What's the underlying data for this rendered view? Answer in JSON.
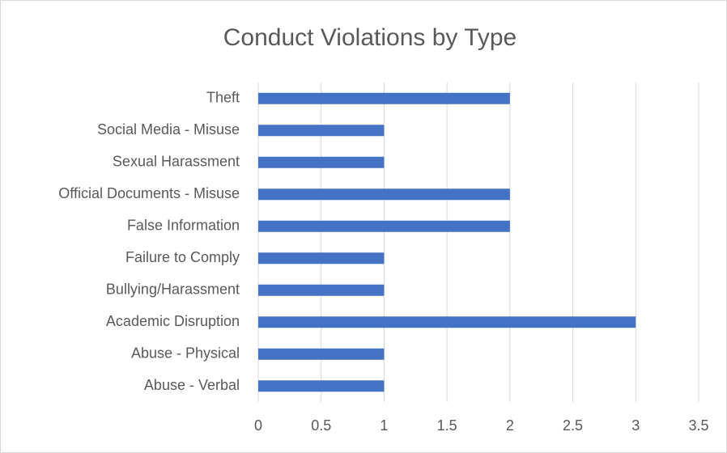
{
  "chart_data": {
    "type": "bar",
    "orientation": "horizontal",
    "title": "Conduct Violations by Type",
    "categories": [
      "Theft",
      "Social Media - Misuse",
      "Sexual Harassment",
      "Official Documents - Misuse",
      "False Information",
      "Failure to Comply",
      "Bullying/Harassment",
      "Academic Disruption",
      "Abuse - Physical",
      "Abuse - Verbal"
    ],
    "values": [
      2,
      1,
      1,
      2,
      2,
      1,
      1,
      3,
      1,
      1
    ],
    "color": "#4472c4",
    "xlim": [
      0,
      3.5
    ],
    "xticks": [
      0,
      0.5,
      1,
      1.5,
      2,
      2.5,
      3,
      3.5
    ],
    "grid": true
  }
}
